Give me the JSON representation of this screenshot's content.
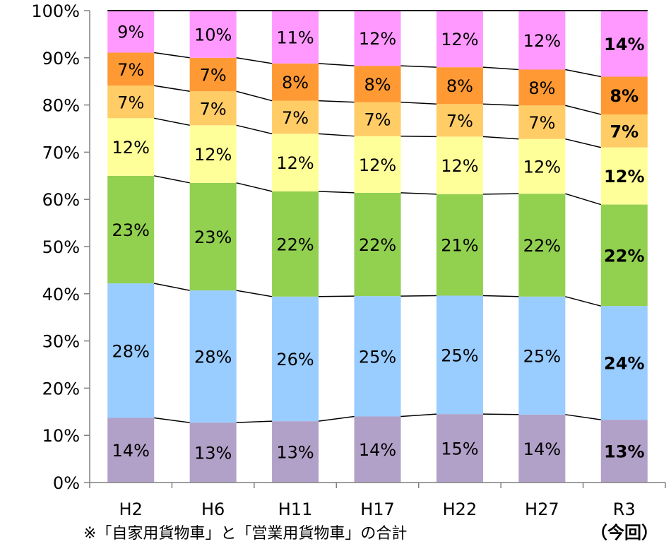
{
  "chart_data": {
    "type": "bar",
    "stacked": true,
    "percent": true,
    "categories": [
      "H2",
      "H6",
      "H11",
      "H17",
      "H22",
      "H27",
      "R3"
    ],
    "highlight_category_sublabel": "（今回）",
    "ylim": [
      0,
      100
    ],
    "yticks": [
      "0%",
      "10%",
      "20%",
      "30%",
      "40%",
      "50%",
      "60%",
      "70%",
      "80%",
      "90%",
      "100%"
    ],
    "gridlines": false,
    "connector_lines": true,
    "note": "※「自家用貨物車」と「営業用貨物車」の合計",
    "series": [
      {
        "color": "#b1a0c7",
        "values": [
          13.7,
          12.7,
          13.0,
          14.0,
          14.5,
          14.4,
          13.3
        ],
        "labels": [
          "14%",
          "13%",
          "13%",
          "14%",
          "15%",
          "14%",
          "13%"
        ]
      },
      {
        "color": "#99ccff",
        "values": [
          28.5,
          28.0,
          26.4,
          25.5,
          25.1,
          25.0,
          24.1
        ],
        "labels": [
          "28%",
          "28%",
          "26%",
          "25%",
          "25%",
          "25%",
          "24%"
        ]
      },
      {
        "color": "#92d050",
        "values": [
          22.8,
          22.8,
          22.3,
          21.9,
          21.5,
          21.8,
          21.5
        ],
        "labels": [
          "23%",
          "23%",
          "22%",
          "22%",
          "21%",
          "22%",
          "22%"
        ]
      },
      {
        "color": "#ffff99",
        "values": [
          12.2,
          12.2,
          12.2,
          12.0,
          12.2,
          11.6,
          12.1
        ],
        "labels": [
          "12%",
          "12%",
          "12%",
          "12%",
          "12%",
          "12%",
          "12%"
        ]
      },
      {
        "color": "#ffcc66",
        "values": [
          6.9,
          7.2,
          7.0,
          7.2,
          6.9,
          7.1,
          7.0
        ],
        "labels": [
          "7%",
          "7%",
          "7%",
          "7%",
          "7%",
          "7%",
          "7%"
        ]
      },
      {
        "color": "#ff9933",
        "values": [
          7.0,
          7.1,
          7.9,
          7.7,
          7.8,
          7.6,
          8.0
        ],
        "labels": [
          "7%",
          "7%",
          "8%",
          "8%",
          "8%",
          "8%",
          "8%"
        ]
      },
      {
        "color": "#ff99ff",
        "values": [
          8.9,
          10.0,
          11.2,
          11.7,
          12.0,
          12.5,
          14.0
        ],
        "labels": [
          "9%",
          "10%",
          "11%",
          "12%",
          "12%",
          "12%",
          "14%"
        ]
      }
    ]
  }
}
